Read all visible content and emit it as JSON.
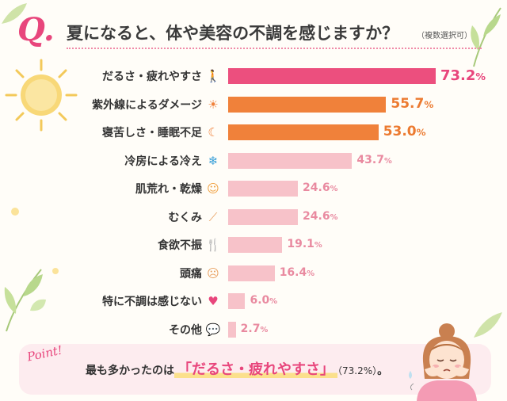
{
  "header": {
    "q_mark": "Q.",
    "title": "夏になると、体や美容の不調を感じますか？",
    "note": "（複数選択可）"
  },
  "chart_data": {
    "type": "bar",
    "orientation": "horizontal",
    "unit": "%",
    "categories": [
      "だるさ・疲れやすさ",
      "紫外線によるダメージ",
      "寝苦しさ・睡眠不足",
      "冷房による冷え",
      "肌荒れ・乾燥",
      "むくみ",
      "食欲不振",
      "頭痛",
      "特に不調は感じない",
      "その他"
    ],
    "values": [
      73.2,
      55.7,
      53.0,
      43.7,
      24.6,
      24.6,
      19.1,
      16.4,
      6.0,
      2.7
    ],
    "value_labels": [
      "73.2",
      "55.7",
      "53.0",
      "43.7",
      "24.6",
      "24.6",
      "19.1",
      "16.4",
      "6.0",
      "2.7"
    ],
    "bar_colors": [
      "#ec4f7e",
      "#f0813a",
      "#f0813a",
      "#f7c2c9",
      "#f7c2c9",
      "#f7c2c9",
      "#f7c2c9",
      "#f7c2c9",
      "#f7c2c9",
      "#f7c2c9"
    ],
    "label_colors": [
      "#e8467c",
      "#ec7a30",
      "#ec7a30",
      "#e98aa0",
      "#e98aa0",
      "#e98aa0",
      "#e98aa0",
      "#e98aa0",
      "#e98aa0",
      "#e98aa0"
    ],
    "icons": [
      "walking-person-icon",
      "sun-icon",
      "crescent-moon-icon",
      "snowflake-icon",
      "face-icon",
      "leg-icon",
      "fork-knife-icon",
      "head-icon",
      "heart-icon",
      "speech-bubble-icon"
    ],
    "icon_glyphs": [
      "🚶",
      "☀",
      "☾",
      "❄",
      "☺",
      "⟋",
      "🍴",
      "☹",
      "♥",
      "💬"
    ],
    "icon_colors": [
      "#e8467c",
      "#f0813a",
      "#f0813a",
      "#3aa0d8",
      "#f0a040",
      "#e8a060",
      "#f0a040",
      "#e8a060",
      "#e8467c",
      "#e8a060"
    ]
  },
  "point": {
    "label": "Point!",
    "prefix": "最も多かったのは",
    "highlight": "「だるさ・疲れやすさ」",
    "pct": "（73.2%）",
    "suffix": "。"
  }
}
